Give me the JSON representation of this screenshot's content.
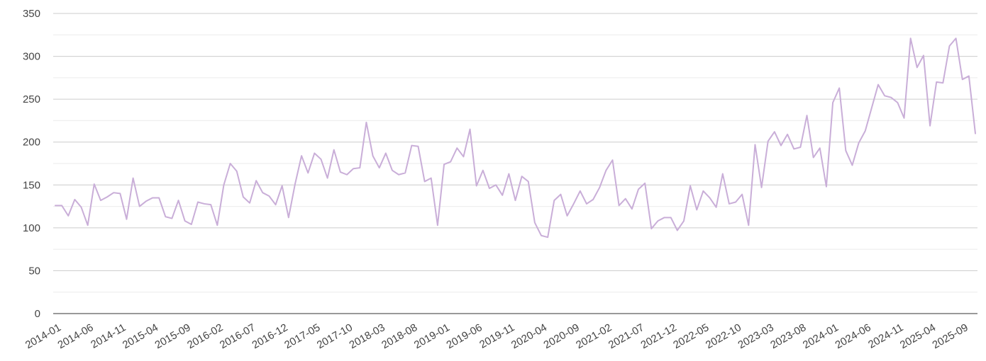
{
  "chart_data": {
    "type": "line",
    "title": "",
    "xlabel": "",
    "ylabel": "",
    "ylim": [
      0,
      350
    ],
    "y_ticks": [
      0,
      50,
      100,
      150,
      200,
      250,
      300,
      350
    ],
    "grid": true,
    "x_tick_labels": [
      "2014-01",
      "2014-06",
      "2014-11",
      "2015-04",
      "2015-09",
      "2016-02",
      "2016-07",
      "2016-12",
      "2017-05",
      "2017-10",
      "2018-03",
      "2018-08",
      "2019-01",
      "2019-06",
      "2019-11",
      "2020-04",
      "2020-09",
      "2021-02",
      "2021-07",
      "2021-12",
      "2022-05",
      "2022-10",
      "2023-03",
      "2023-08",
      "2024-01",
      "2024-06",
      "2024-11",
      "2025-04",
      "2025-09"
    ],
    "x_start": "2014-01",
    "series": [
      {
        "color": "#c9aed8",
        "values": [
          126,
          126,
          114,
          133,
          124,
          103,
          151,
          132,
          136,
          141,
          140,
          110,
          158,
          125,
          131,
          135,
          135,
          113,
          111,
          132,
          108,
          104,
          130,
          128,
          127,
          103,
          150,
          175,
          166,
          136,
          129,
          155,
          141,
          137,
          127,
          149,
          112,
          151,
          184,
          164,
          187,
          180,
          158,
          191,
          165,
          162,
          169,
          170,
          223,
          184,
          170,
          187,
          167,
          162,
          164,
          196,
          195,
          154,
          158,
          103,
          174,
          177,
          193,
          183,
          215,
          149,
          167,
          146,
          150,
          138,
          163,
          132,
          160,
          154,
          106,
          91,
          89,
          132,
          139,
          114,
          128,
          143,
          128,
          133,
          147,
          167,
          179,
          126,
          134,
          122,
          145,
          152,
          99,
          108,
          112,
          112,
          97,
          108,
          149,
          121,
          143,
          135,
          124,
          163,
          128,
          130,
          139,
          103,
          197,
          147,
          201,
          212,
          196,
          209,
          192,
          194,
          231,
          182,
          193,
          148,
          246,
          263,
          190,
          173,
          199,
          213,
          240,
          267,
          254,
          252,
          246,
          228,
          321,
          287,
          301,
          219,
          270,
          269,
          312,
          321,
          273,
          277,
          210
        ]
      }
    ]
  }
}
